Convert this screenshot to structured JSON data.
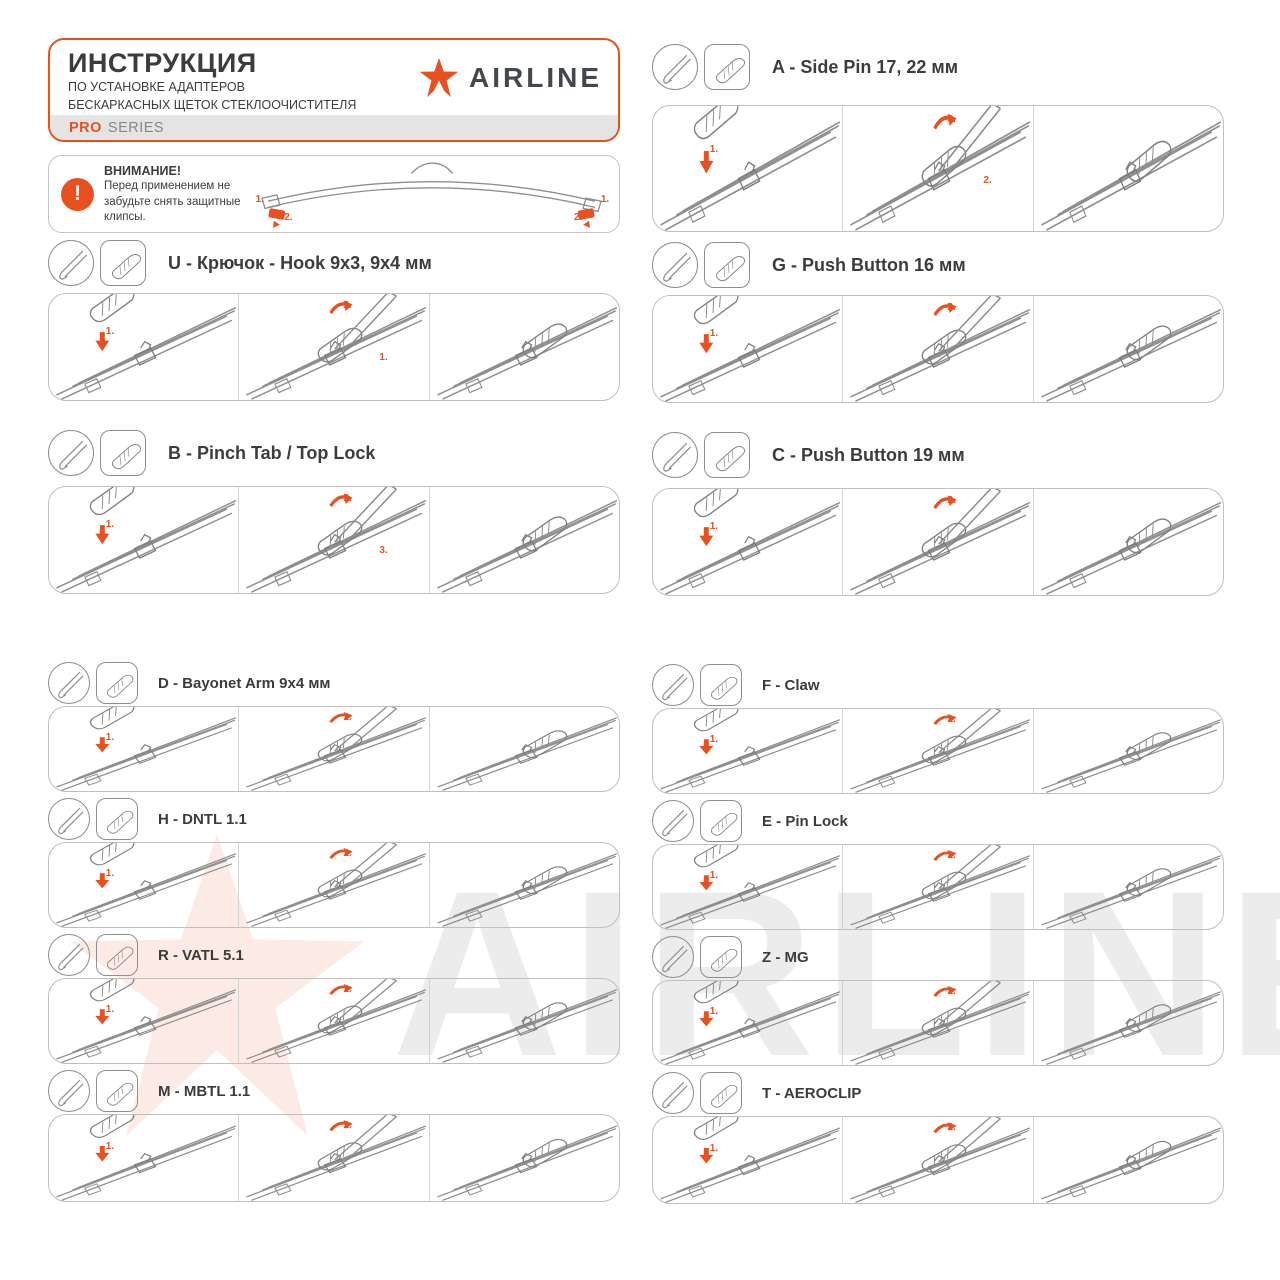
{
  "header": {
    "title": "ИНСТРУКЦИЯ",
    "subtitle_line1": "ПО УСТАНОВКЕ АДАПТЕРОВ",
    "subtitle_line2": "БЕСКАРКАСНЫХ ЩЕТОК СТЕКЛООЧИСТИТЕЛЯ",
    "series_accent": "PRO",
    "series_rest": "SERIES",
    "brand": "AIRLINE"
  },
  "warning": {
    "title": "ВНИМАНИЕ!",
    "line1": "Перед применением не",
    "line2": "забудьте снять защитные",
    "line3": "клипсы.",
    "exclamation": "!",
    "left_markers": [
      "1.",
      "2."
    ],
    "right_markers": [
      "1.",
      "2."
    ]
  },
  "watermark": {
    "text": "AIRLINE",
    "icon": "airline-star"
  },
  "colors": {
    "accent_orange": "#E8511F",
    "text_dark": "#3C3C3B",
    "box_border_gray": "#BFBFBF",
    "line_art_gray": "#8E8E8E",
    "series_strip_bg": "#E4E4E4",
    "watermark_gray": "#ECECEC"
  },
  "sections": [
    {
      "id": "U",
      "label": "U - Крючок - Hook 9x3, 9x4 мм",
      "column": "left",
      "steps": [
        {
          "arrows": [
            "1."
          ]
        },
        {
          "arrows": [
            "2.",
            "1."
          ]
        },
        {
          "arrows": []
        }
      ]
    },
    {
      "id": "B",
      "label": "B - Pinch Tab / Top Lock",
      "column": "left",
      "steps": [
        {
          "arrows": [
            "1."
          ]
        },
        {
          "arrows": [
            "2.",
            "3."
          ]
        },
        {
          "arrows": []
        }
      ]
    },
    {
      "id": "D",
      "label": "D - Bayonet Arm 9x4 мм",
      "column": "left",
      "steps": [
        {
          "arrows": [
            "1."
          ]
        },
        {
          "arrows": [
            "2."
          ]
        },
        {
          "arrows": []
        }
      ]
    },
    {
      "id": "H",
      "label": "H - DNTL 1.1",
      "column": "left",
      "steps": [
        {
          "arrows": [
            "1."
          ]
        },
        {
          "arrows": [
            "2."
          ]
        },
        {
          "arrows": []
        }
      ]
    },
    {
      "id": "R",
      "label": "R - VATL 5.1",
      "column": "left",
      "steps": [
        {
          "arrows": [
            "1."
          ]
        },
        {
          "arrows": [
            "2."
          ]
        },
        {
          "arrows": []
        }
      ]
    },
    {
      "id": "M",
      "label": "M - MBTL 1.1",
      "column": "left",
      "steps": [
        {
          "arrows": [
            "1."
          ]
        },
        {
          "arrows": [
            "2."
          ]
        },
        {
          "arrows": []
        }
      ]
    },
    {
      "id": "A",
      "label": "A - Side Pin 17, 22 мм",
      "column": "right",
      "steps": [
        {
          "arrows": [
            "1."
          ]
        },
        {
          "arrows": [
            "3.",
            "2."
          ]
        },
        {
          "arrows": []
        }
      ]
    },
    {
      "id": "G",
      "label": "G - Push Button 16 мм",
      "column": "right",
      "steps": [
        {
          "arrows": [
            "1."
          ]
        },
        {
          "arrows": [
            "2."
          ]
        },
        {
          "arrows": []
        }
      ]
    },
    {
      "id": "C",
      "label": "C - Push Button 19 мм",
      "column": "right",
      "steps": [
        {
          "arrows": [
            "1."
          ]
        },
        {
          "arrows": [
            "2."
          ]
        },
        {
          "arrows": []
        }
      ]
    },
    {
      "id": "F",
      "label": "F - Claw",
      "column": "right",
      "steps": [
        {
          "arrows": [
            "1."
          ]
        },
        {
          "arrows": [
            "2."
          ]
        },
        {
          "arrows": []
        }
      ]
    },
    {
      "id": "E",
      "label": "E - Pin Lock",
      "column": "right",
      "steps": [
        {
          "arrows": [
            "1."
          ]
        },
        {
          "arrows": [
            "2."
          ]
        },
        {
          "arrows": []
        }
      ]
    },
    {
      "id": "Z",
      "label": "Z - MG",
      "column": "right",
      "steps": [
        {
          "arrows": [
            "1."
          ]
        },
        {
          "arrows": [
            "2."
          ]
        },
        {
          "arrows": []
        }
      ]
    },
    {
      "id": "T",
      "label": "T - AEROCLIP",
      "column": "right",
      "steps": [
        {
          "arrows": [
            "1."
          ]
        },
        {
          "arrows": [
            "2."
          ]
        },
        {
          "arrows": []
        }
      ]
    }
  ]
}
